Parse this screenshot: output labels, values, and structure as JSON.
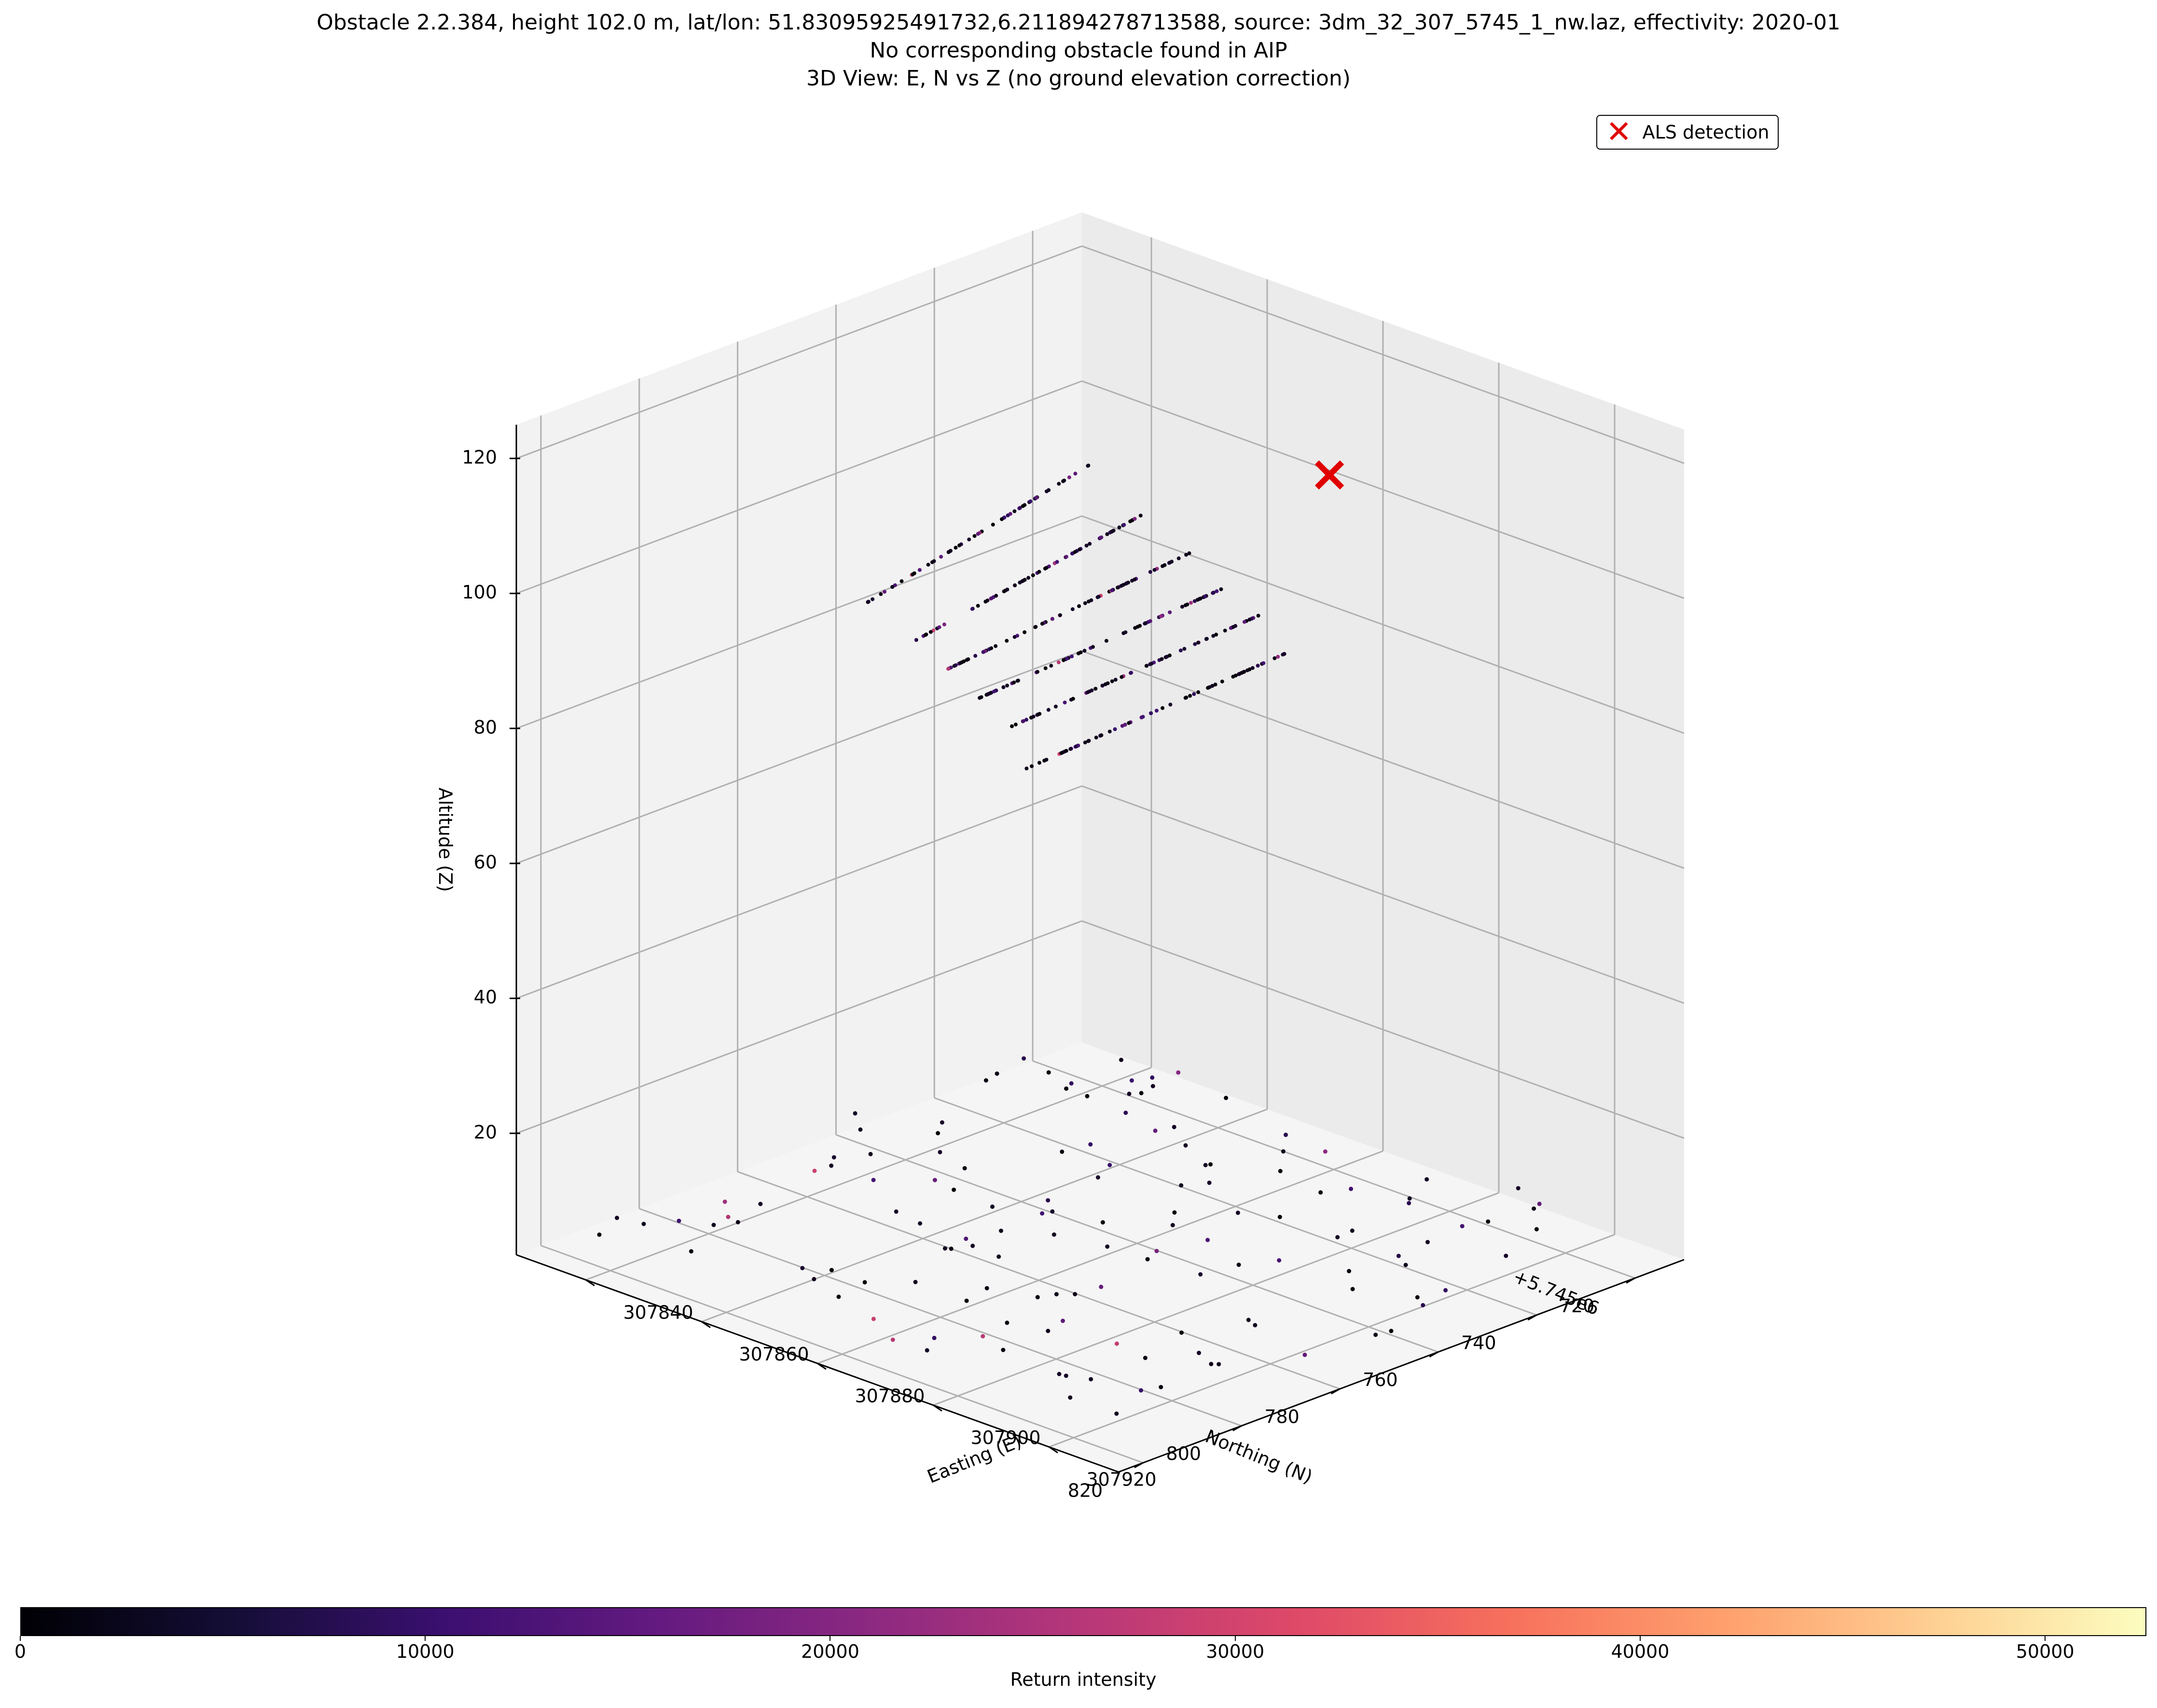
{
  "title": {
    "line1": "Obstacle 2.2.384, height 102.0 m, lat/lon: 51.83095925491732,6.211894278713588, source: 3dm_32_307_5745_1_nw.laz, effectivity: 2020-01",
    "line2": "No corresponding obstacle found in AIP",
    "line3": "3D View: E, N vs Z (no ground elevation correction)"
  },
  "legend": {
    "label": "ALS detection",
    "marker_icon": "red-x-icon",
    "color": "#e00000"
  },
  "colorbar": {
    "label": "Return intensity",
    "colormap": "magma",
    "ticks": [
      "0",
      "10000",
      "20000",
      "30000",
      "40000",
      "50000"
    ],
    "range": [
      0,
      52500
    ]
  },
  "chart_data": {
    "type": "scatter",
    "projection": "3d",
    "xlabel": "Easting (E)",
    "ylabel": "Northing (N)",
    "zlabel": "Altitude (Z)",
    "y_offset_label": "+5.745e6",
    "xlim": [
      307828,
      307932
    ],
    "ylim": [
      710,
      825
    ],
    "zlim": [
      2,
      125
    ],
    "x_ticks": [
      "307840",
      "307860",
      "307880",
      "307900",
      "307920"
    ],
    "y_ticks": [
      "720",
      "740",
      "760",
      "780",
      "800",
      "820"
    ],
    "z_ticks": [
      "20",
      "40",
      "60",
      "80",
      "100",
      "120"
    ],
    "grid": true,
    "detection": {
      "x": 307875,
      "y": 715,
      "z": 102,
      "name": "ALS detection"
    },
    "wire_lines": [
      {
        "x0": 307842,
        "y0": 770,
        "z0": 88,
        "x1": 307842,
        "y1": 725,
        "z1": 96,
        "n": 70
      },
      {
        "x0": 307852,
        "y0": 772,
        "z0": 86,
        "x1": 307852,
        "y1": 726,
        "z1": 92,
        "n": 80
      },
      {
        "x0": 307860,
        "y0": 775,
        "z0": 85,
        "x1": 307862,
        "y1": 728,
        "z1": 90,
        "n": 80
      },
      {
        "x0": 307868,
        "y0": 778,
        "z0": 84,
        "x1": 307870,
        "y1": 730,
        "z1": 88,
        "n": 80
      },
      {
        "x0": 307876,
        "y0": 782,
        "z0": 83,
        "x1": 307878,
        "y1": 733,
        "z1": 87,
        "n": 70
      },
      {
        "x0": 307884,
        "y0": 788,
        "z0": 81,
        "x1": 307886,
        "y1": 736,
        "z1": 85,
        "n": 70
      }
    ],
    "ground_points": {
      "count": 140,
      "x_range": [
        307830,
        307928
      ],
      "y_range": [
        715,
        820
      ],
      "z_range": [
        3,
        8
      ]
    },
    "intensity_range": [
      0,
      30000
    ]
  }
}
